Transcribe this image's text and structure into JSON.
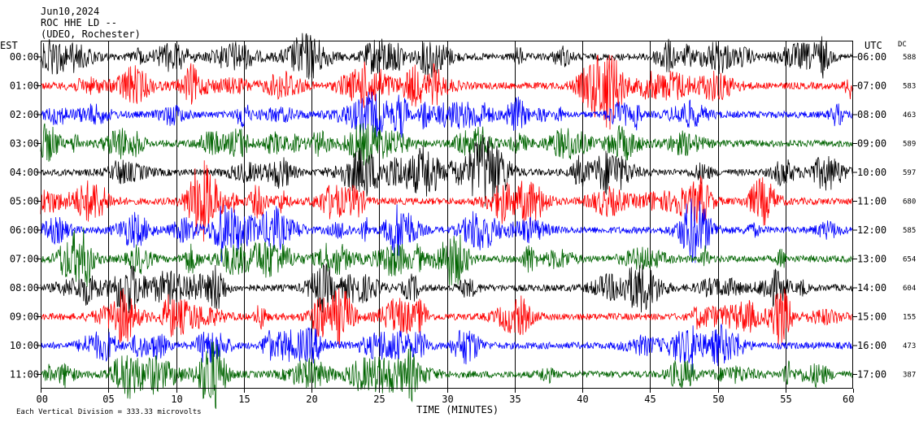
{
  "header": {
    "date": "Jun10,2024",
    "station": "ROC HHE LD --",
    "network": "(UDEO, Rochester)"
  },
  "footer": {
    "scale_note": "Each Vertical Division = 333.33 microvolts"
  },
  "chart_data": {
    "type": "line",
    "title": "Jun10,2024 ROC HHE LD -- (UDEO, Rochester)",
    "left_axis_label": "EST",
    "right_axis_label": "UTC",
    "dc_label": "DC",
    "xlabel": "TIME (MINUTES)",
    "xlim": [
      0,
      60
    ],
    "x_ticks": [
      "00",
      "05",
      "10",
      "15",
      "20",
      "25",
      "30",
      "35",
      "40",
      "45",
      "50",
      "55",
      "60"
    ],
    "grid_vertical_every_minutes": 5,
    "trace_colors": [
      "#000000",
      "#ff0000",
      "#0000ff",
      "#006400"
    ],
    "rows": [
      {
        "est": "00:00",
        "utc": "06:00",
        "dc": "588",
        "color": "#000000"
      },
      {
        "est": "01:00",
        "utc": "07:00",
        "dc": "583",
        "color": "#ff0000"
      },
      {
        "est": "02:00",
        "utc": "08:00",
        "dc": "463",
        "color": "#0000ff"
      },
      {
        "est": "03:00",
        "utc": "09:00",
        "dc": "589",
        "color": "#006400"
      },
      {
        "est": "04:00",
        "utc": "10:00",
        "dc": "597",
        "color": "#000000"
      },
      {
        "est": "05:00",
        "utc": "11:00",
        "dc": "680",
        "color": "#ff0000"
      },
      {
        "est": "06:00",
        "utc": "12:00",
        "dc": "585",
        "color": "#0000ff"
      },
      {
        "est": "07:00",
        "utc": "13:00",
        "dc": "654",
        "color": "#006400"
      },
      {
        "est": "08:00",
        "utc": "14:00",
        "dc": "604",
        "color": "#000000"
      },
      {
        "est": "09:00",
        "utc": "15:00",
        "dc": "155",
        "color": "#ff0000"
      },
      {
        "est": "10:00",
        "utc": "16:00",
        "dc": "473",
        "color": "#0000ff"
      },
      {
        "est": "11:00",
        "utc": "17:00",
        "dc": "387",
        "color": "#006400"
      }
    ]
  }
}
